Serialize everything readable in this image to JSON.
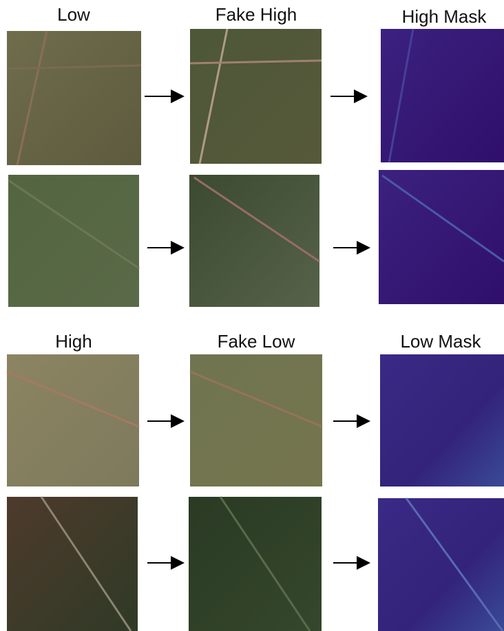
{
  "panels": [
    {
      "headers": [
        "Low",
        "Fake High",
        "High Mask"
      ]
    },
    {
      "headers": [
        "High",
        "Fake Low",
        "Low Mask"
      ]
    }
  ]
}
